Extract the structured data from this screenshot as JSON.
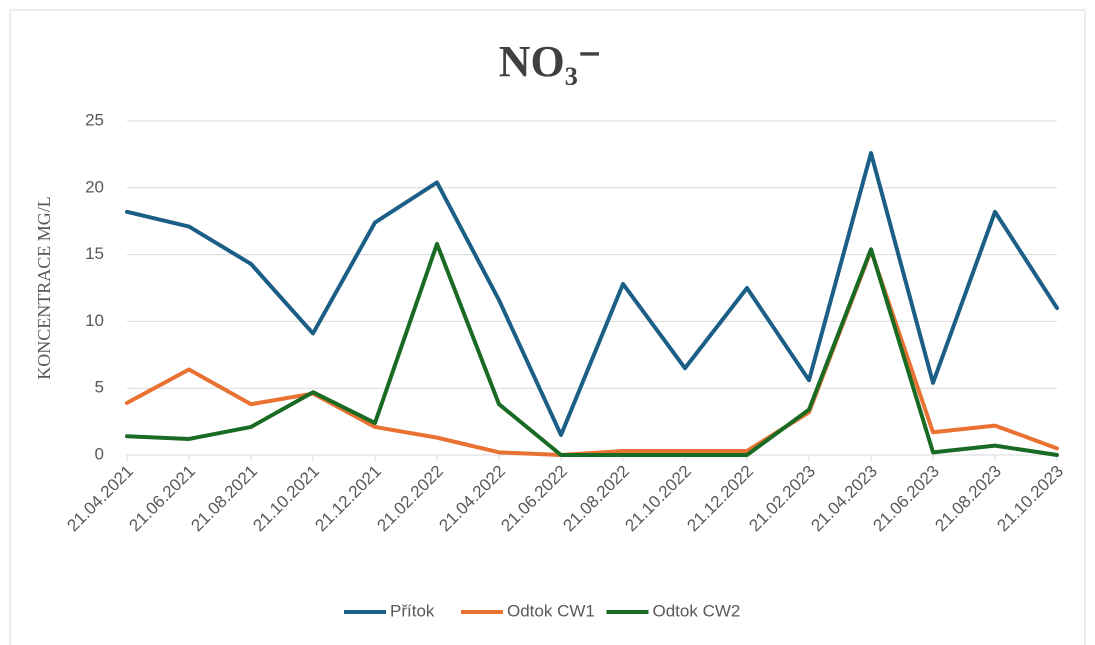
{
  "chart_data": {
    "type": "line",
    "title": "NO₃⁻",
    "y_label": "KONCENTRACE MG/L",
    "categories": [
      "21.04.2021",
      "21.06.2021",
      "21.08.2021",
      "21.10.2021",
      "21.12.2021",
      "21.02.2022",
      "21.04.2022",
      "21.06.2022",
      "21.08.2022",
      "21.10.2022",
      "21.12.2022",
      "21.02.2023",
      "21.04.2023",
      "21.06.2023",
      "21.08.2023",
      "21.10.2023"
    ],
    "series": [
      {
        "name": "Přítok",
        "color": "#1b5e86",
        "values": [
          18.2,
          17.1,
          14.3,
          9.1,
          17.4,
          20.4,
          11.6,
          1.5,
          12.8,
          6.5,
          12.5,
          5.6,
          22.6,
          5.4,
          18.2,
          11.0
        ]
      },
      {
        "name": "Odtok CW1",
        "color": "#e97132",
        "values": [
          3.9,
          6.4,
          3.8,
          4.6,
          2.1,
          1.3,
          0.2,
          0,
          0.3,
          0.3,
          0.3,
          3.2,
          15.3,
          1.7,
          2.2,
          0.5
        ]
      },
      {
        "name": "Odtok CW2",
        "color": "#196b24",
        "values": [
          1.4,
          1.2,
          2.1,
          4.7,
          2.4,
          15.8,
          3.8,
          0,
          0,
          0,
          0,
          3.4,
          15.4,
          0.2,
          0.7,
          0
        ]
      }
    ],
    "ylim": [
      0,
      25
    ],
    "yticks": [
      0,
      5,
      10,
      15,
      20,
      25
    ],
    "grid": true,
    "legend": "bottom"
  }
}
